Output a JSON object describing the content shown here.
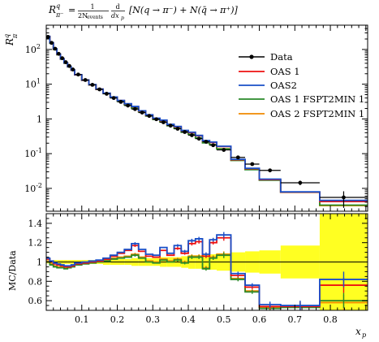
{
  "chart_data": {
    "type": "line",
    "title_formula": "R_π^q = 1/(2N_events) d/dx_p [N(q→π⁻) + N(q̄→π⁺)]",
    "title_parts": {
      "R": "R",
      "R_sup": "q",
      "R_sub": "π⁻",
      "eq": "=",
      "frac_num": "1",
      "frac_den": "2N",
      "frac_den_sub": "events",
      "d": "d",
      "dx": "dx",
      "dx_sub": "p",
      "bracket": "[N(q → π⁻) + N(q̄ → π⁺)]"
    },
    "ylabel": {
      "main": "R",
      "sup": "q",
      "sub": "π"
    },
    "ratio_ylabel": "MC/Data",
    "xlabel": {
      "main": "x",
      "sub": "p"
    },
    "xlim": [
      0.0,
      0.905
    ],
    "ylim_main_log": [
      0.0022,
      500
    ],
    "ylim_ratio": [
      0.5,
      1.5
    ],
    "main_yticks": [
      {
        "exp": "-2",
        "value": 0.01
      },
      {
        "exp": "-1",
        "value": 0.1
      },
      {
        "exp": "",
        "value": 1,
        "text": "1"
      },
      {
        "exp": "1",
        "value": 10
      },
      {
        "exp": "2",
        "value": 100
      }
    ],
    "ratio_yticks": [
      {
        "value": 0.6,
        "label": "0.6"
      },
      {
        "value": 0.8,
        "label": "0.8"
      },
      {
        "value": 1.0,
        "label": "1"
      },
      {
        "value": 1.2,
        "label": "1.2"
      },
      {
        "value": 1.4,
        "label": "1.4"
      }
    ],
    "xticks": [
      {
        "value": 0.1,
        "label": "0.1"
      },
      {
        "value": 0.2,
        "label": "0.2"
      },
      {
        "value": 0.3,
        "label": "0.3"
      },
      {
        "value": 0.4,
        "label": "0.4"
      },
      {
        "value": 0.5,
        "label": "0.5"
      },
      {
        "value": 0.6,
        "label": "0.6"
      },
      {
        "value": 0.7,
        "label": "0.7"
      },
      {
        "value": 0.8,
        "label": "0.8"
      }
    ],
    "bins": [
      0.0,
      0.01,
      0.02,
      0.03,
      0.04,
      0.05,
      0.06,
      0.07,
      0.08,
      0.1,
      0.12,
      0.14,
      0.16,
      0.18,
      0.2,
      0.22,
      0.24,
      0.26,
      0.28,
      0.3,
      0.32,
      0.34,
      0.36,
      0.38,
      0.4,
      0.42,
      0.44,
      0.46,
      0.48,
      0.52,
      0.56,
      0.6,
      0.66,
      0.77,
      0.905
    ],
    "data": {
      "name": "Data",
      "color": "#000000",
      "values": [
        230,
        155,
        105,
        75,
        56,
        43,
        33.5,
        26.5,
        19,
        13.2,
        9.6,
        7.1,
        5.3,
        4.0,
        3.1,
        2.42,
        1.92,
        1.52,
        1.22,
        0.98,
        0.8,
        0.64,
        0.52,
        0.42,
        0.34,
        0.27,
        0.22,
        0.175,
        0.128,
        0.078,
        0.05,
        0.033,
        0.0145,
        0.0055
      ],
      "y_err_rel": [
        0.02,
        0.02,
        0.02,
        0.02,
        0.02,
        0.02,
        0.02,
        0.02,
        0.02,
        0.02,
        0.02,
        0.02,
        0.02,
        0.02,
        0.02,
        0.02,
        0.03,
        0.03,
        0.03,
        0.03,
        0.03,
        0.04,
        0.04,
        0.04,
        0.05,
        0.05,
        0.05,
        0.06,
        0.06,
        0.08,
        0.1,
        0.12,
        0.15,
        0.5
      ]
    },
    "series": [
      {
        "name": "OAS 1",
        "color": "#ee1111",
        "ratio": [
          1.03,
          1.0,
          0.98,
          0.97,
          0.96,
          0.95,
          0.95,
          0.96,
          0.98,
          0.99,
          1.0,
          1.01,
          1.03,
          1.06,
          1.09,
          1.12,
          1.17,
          1.11,
          1.06,
          1.05,
          1.12,
          1.07,
          1.14,
          1.09,
          1.19,
          1.21,
          1.06,
          1.2,
          1.25,
          0.86,
          0.74,
          0.54,
          0.54,
          0.76
        ],
        "ratio_err": [
          0,
          0,
          0,
          0,
          0,
          0,
          0,
          0,
          0,
          0,
          0,
          0,
          0,
          0,
          0,
          0,
          0.015,
          0,
          0,
          0,
          0,
          0,
          0.015,
          0.015,
          0.02,
          0.02,
          0.02,
          0.02,
          0.03,
          0.02,
          0.02,
          0.03,
          0.05,
          0.08
        ]
      },
      {
        "name": "OAS2",
        "color": "#1a4fc7",
        "ratio": [
          1.04,
          1.01,
          0.99,
          0.98,
          0.97,
          0.96,
          0.96,
          0.97,
          0.99,
          1.0,
          1.01,
          1.02,
          1.04,
          1.07,
          1.1,
          1.13,
          1.19,
          1.13,
          1.08,
          1.07,
          1.15,
          1.09,
          1.17,
          1.11,
          1.22,
          1.24,
          1.08,
          1.23,
          1.28,
          0.88,
          0.76,
          0.56,
          0.55,
          0.82
        ],
        "ratio_err": [
          0,
          0,
          0,
          0,
          0,
          0,
          0,
          0,
          0,
          0,
          0,
          0,
          0,
          0,
          0,
          0,
          0.015,
          0,
          0,
          0,
          0,
          0,
          0.015,
          0.015,
          0.02,
          0.02,
          0.02,
          0.02,
          0.03,
          0.02,
          0.02,
          0.03,
          0.05,
          0.08
        ]
      },
      {
        "name": "OAS 1 FSPT2MIN 1",
        "color": "#2a8a2a",
        "ratio": [
          1.0,
          0.97,
          0.95,
          0.94,
          0.94,
          0.93,
          0.94,
          0.95,
          0.97,
          0.98,
          0.99,
          1.0,
          1.01,
          1.03,
          1.04,
          1.05,
          1.07,
          1.04,
          1.0,
          0.99,
          1.02,
          1.0,
          1.02,
          0.99,
          1.05,
          1.05,
          0.93,
          1.04,
          1.07,
          0.82,
          0.69,
          0.52,
          0.53,
          0.6
        ],
        "ratio_err": [
          0,
          0,
          0,
          0,
          0,
          0,
          0,
          0,
          0,
          0,
          0,
          0,
          0,
          0,
          0,
          0,
          0.015,
          0,
          0,
          0,
          0,
          0,
          0.015,
          0.015,
          0.02,
          0.02,
          0.02,
          0.02,
          0.03,
          0.02,
          0.02,
          0.03,
          0.05,
          0.08
        ]
      },
      {
        "name": "OAS 2 FSPT2MIN 1",
        "color": "#f08a00",
        "ratio": [
          1.01,
          0.98,
          0.96,
          0.95,
          0.95,
          0.94,
          0.95,
          0.96,
          0.98,
          0.99,
          1.0,
          1.01,
          1.02,
          1.04,
          1.05,
          1.06,
          1.08,
          1.05,
          1.01,
          1.0,
          1.03,
          1.01,
          1.03,
          1.0,
          1.06,
          1.06,
          0.94,
          1.05,
          1.08,
          0.83,
          0.7,
          0.53,
          0.535,
          0.58
        ],
        "ratio_err": [
          0,
          0,
          0,
          0,
          0,
          0,
          0,
          0,
          0,
          0,
          0,
          0,
          0,
          0,
          0,
          0,
          0.015,
          0,
          0,
          0,
          0,
          0,
          0.015,
          0.015,
          0.02,
          0.02,
          0.02,
          0.02,
          0.03,
          0.02,
          0.02,
          0.03,
          0.05,
          0.08
        ]
      }
    ],
    "uncertainty_band": {
      "color": "#ffff22",
      "half_width": [
        0.015,
        0.015,
        0.02,
        0.02,
        0.02,
        0.02,
        0.02,
        0.02,
        0.02,
        0.02,
        0.02,
        0.02,
        0.03,
        0.03,
        0.03,
        0.03,
        0.04,
        0.04,
        0.04,
        0.04,
        0.05,
        0.05,
        0.05,
        0.06,
        0.07,
        0.07,
        0.08,
        0.08,
        0.09,
        0.1,
        0.11,
        0.12,
        0.17,
        1.0
      ]
    },
    "legend": {
      "position": "top-right"
    }
  }
}
